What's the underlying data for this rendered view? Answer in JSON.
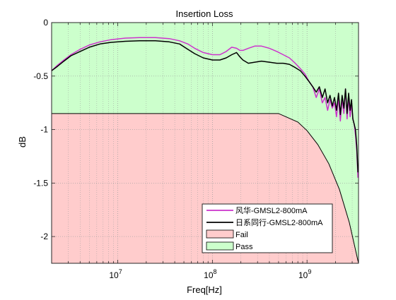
{
  "chart_data": {
    "type": "line",
    "title": "Insertion Loss",
    "xlabel": "Freq[Hz]",
    "ylabel": "dB",
    "xscale": "log",
    "xlim": [
      2000000,
      3500000000
    ],
    "ylim": [
      -2.25,
      0
    ],
    "grid": "dotted, on",
    "legend_position": "bottom-right",
    "x_ticks": [
      {
        "value": 10000000,
        "base": "10",
        "exp": "7"
      },
      {
        "value": 100000000,
        "base": "10",
        "exp": "8"
      },
      {
        "value": 1000000000,
        "base": "10",
        "exp": "9"
      }
    ],
    "y_ticks": [
      {
        "value": 0,
        "label": "0"
      },
      {
        "value": -0.5,
        "label": "-0.5"
      },
      {
        "value": -1,
        "label": "-1"
      },
      {
        "value": -1.5,
        "label": "-1.5"
      },
      {
        "value": -2,
        "label": "-2"
      }
    ],
    "series": [
      {
        "name": "风华-GMSL2-800mA",
        "color": "#cc33cc",
        "x": [
          2000000,
          2300000,
          2700000,
          3200000,
          4000000,
          5000000,
          6500000,
          8500000,
          12000000,
          17000000,
          25000000,
          35000000,
          45000000,
          55000000,
          65000000,
          80000000,
          100000000,
          120000000,
          140000000,
          160000000,
          180000000,
          195000000,
          210000000,
          240000000,
          280000000,
          330000000,
          400000000,
          480000000,
          560000000,
          650000000,
          750000000,
          850000000,
          950000000,
          1050000000,
          1150000000,
          1250000000,
          1350000000,
          1450000000,
          1550000000,
          1650000000,
          1750000000,
          1850000000,
          1950000000,
          2050000000,
          2150000000,
          2250000000,
          2350000000,
          2450000000,
          2550000000,
          2650000000,
          2750000000,
          2850000000,
          2950000000,
          3050000000,
          3150000000,
          3250000000,
          3350000000,
          3450000000
        ],
        "values": [
          -0.45,
          -0.4,
          -0.35,
          -0.3,
          -0.25,
          -0.21,
          -0.18,
          -0.16,
          -0.145,
          -0.14,
          -0.14,
          -0.15,
          -0.17,
          -0.2,
          -0.24,
          -0.28,
          -0.3,
          -0.3,
          -0.27,
          -0.23,
          -0.24,
          -0.26,
          -0.26,
          -0.24,
          -0.22,
          -0.22,
          -0.24,
          -0.27,
          -0.3,
          -0.33,
          -0.38,
          -0.43,
          -0.48,
          -0.55,
          -0.6,
          -0.7,
          -0.62,
          -0.75,
          -0.7,
          -0.82,
          -0.72,
          -0.8,
          -0.75,
          -0.88,
          -0.7,
          -0.92,
          -0.72,
          -0.85,
          -0.62,
          -0.9,
          -0.7,
          -0.88,
          -0.75,
          -0.9,
          -0.95,
          -1.05,
          -1.2,
          -1.45
        ]
      },
      {
        "name": "日系同行-GMSL2-800mA",
        "color": "#000000",
        "x": [
          2000000,
          2300000,
          2700000,
          3200000,
          4000000,
          5000000,
          6500000,
          8500000,
          12000000,
          17000000,
          25000000,
          35000000,
          45000000,
          55000000,
          65000000,
          80000000,
          100000000,
          120000000,
          140000000,
          160000000,
          180000000,
          195000000,
          210000000,
          240000000,
          280000000,
          330000000,
          400000000,
          480000000,
          560000000,
          650000000,
          750000000,
          850000000,
          950000000,
          1050000000,
          1150000000,
          1250000000,
          1350000000,
          1450000000,
          1550000000,
          1650000000,
          1750000000,
          1850000000,
          1950000000,
          2050000000,
          2150000000,
          2250000000,
          2350000000,
          2450000000,
          2550000000,
          2650000000,
          2750000000,
          2850000000,
          2950000000,
          3050000000,
          3150000000,
          3250000000,
          3350000000,
          3450000000
        ],
        "values": [
          -0.45,
          -0.41,
          -0.36,
          -0.31,
          -0.27,
          -0.23,
          -0.2,
          -0.185,
          -0.175,
          -0.17,
          -0.17,
          -0.18,
          -0.2,
          -0.25,
          -0.29,
          -0.33,
          -0.35,
          -0.35,
          -0.33,
          -0.3,
          -0.28,
          -0.32,
          -0.35,
          -0.38,
          -0.37,
          -0.36,
          -0.37,
          -0.38,
          -0.38,
          -0.39,
          -0.42,
          -0.45,
          -0.5,
          -0.55,
          -0.6,
          -0.65,
          -0.6,
          -0.7,
          -0.62,
          -0.75,
          -0.68,
          -0.78,
          -0.7,
          -0.82,
          -0.66,
          -0.86,
          -0.68,
          -0.8,
          -0.62,
          -0.85,
          -0.66,
          -0.82,
          -0.72,
          -0.9,
          -0.95,
          -1.0,
          -1.15,
          -1.4
        ]
      }
    ],
    "regions": [
      {
        "name": "Fail",
        "color": "#ffcccc",
        "edge": "#000000"
      },
      {
        "name": "Pass",
        "color": "#ccffcc",
        "edge": "#000000"
      }
    ],
    "limit_line": {
      "x": [
        2000000,
        500000000,
        800000000,
        1000000000,
        1300000000,
        1700000000,
        2200000000,
        2800000000,
        3500000000
      ],
      "values": [
        -0.85,
        -0.85,
        -0.93,
        -1.01,
        -1.14,
        -1.32,
        -1.56,
        -1.87,
        -2.25
      ]
    }
  }
}
